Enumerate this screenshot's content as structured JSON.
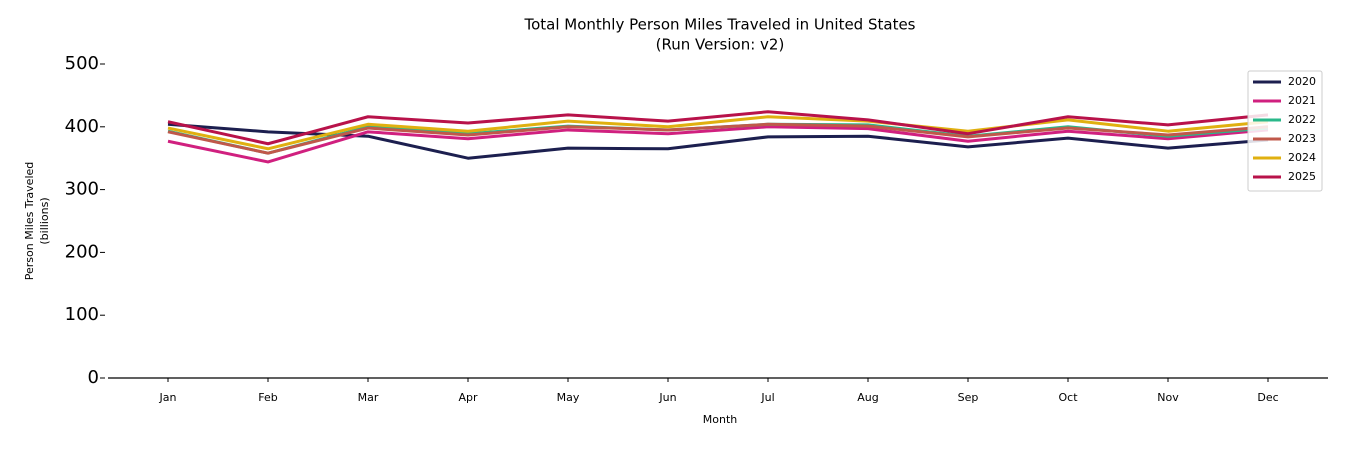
{
  "chart_data": {
    "type": "line",
    "title": "Total Monthly Person Miles Traveled in United States",
    "subtitle": "(Run Version: v2)",
    "xlabel": "Month",
    "ylabel": [
      "Person Miles Traveled",
      "(billions)"
    ],
    "categories": [
      "Jan",
      "Feb",
      "Mar",
      "Apr",
      "May",
      "Jun",
      "Jul",
      "Aug",
      "Sep",
      "Oct",
      "Nov",
      "Dec"
    ],
    "ylim": [
      0,
      500
    ],
    "yticks": [
      0,
      100,
      200,
      300,
      400,
      500
    ],
    "legend": "upper right",
    "series": [
      {
        "name": "2020",
        "color": "#1c1f4f",
        "values": [
          404,
          392,
          385,
          350,
          366,
          365,
          384,
          385,
          368,
          382,
          366,
          379
        ]
      },
      {
        "name": "2021",
        "color": "#d0207f",
        "values": [
          377,
          344,
          392,
          381,
          395,
          389,
          400,
          397,
          377,
          393,
          381,
          395
        ]
      },
      {
        "name": "2022",
        "color": "#2ab88a",
        "values": [
          393,
          358,
          400,
          389,
          401,
          395,
          404,
          403,
          385,
          400,
          385,
          398
        ]
      },
      {
        "name": "2023",
        "color": "#c0584a",
        "values": [
          392,
          358,
          398,
          387,
          400,
          395,
          404,
          401,
          384,
          398,
          387,
          400
        ]
      },
      {
        "name": "2024",
        "color": "#e0b010",
        "values": [
          398,
          365,
          404,
          393,
          409,
          400,
          416,
          409,
          393,
          411,
          393,
          408
        ]
      },
      {
        "name": "2025",
        "color": "#b8124a",
        "values": [
          408,
          373,
          416,
          406,
          419,
          409,
          424,
          411,
          389,
          416,
          403,
          419
        ]
      }
    ]
  }
}
